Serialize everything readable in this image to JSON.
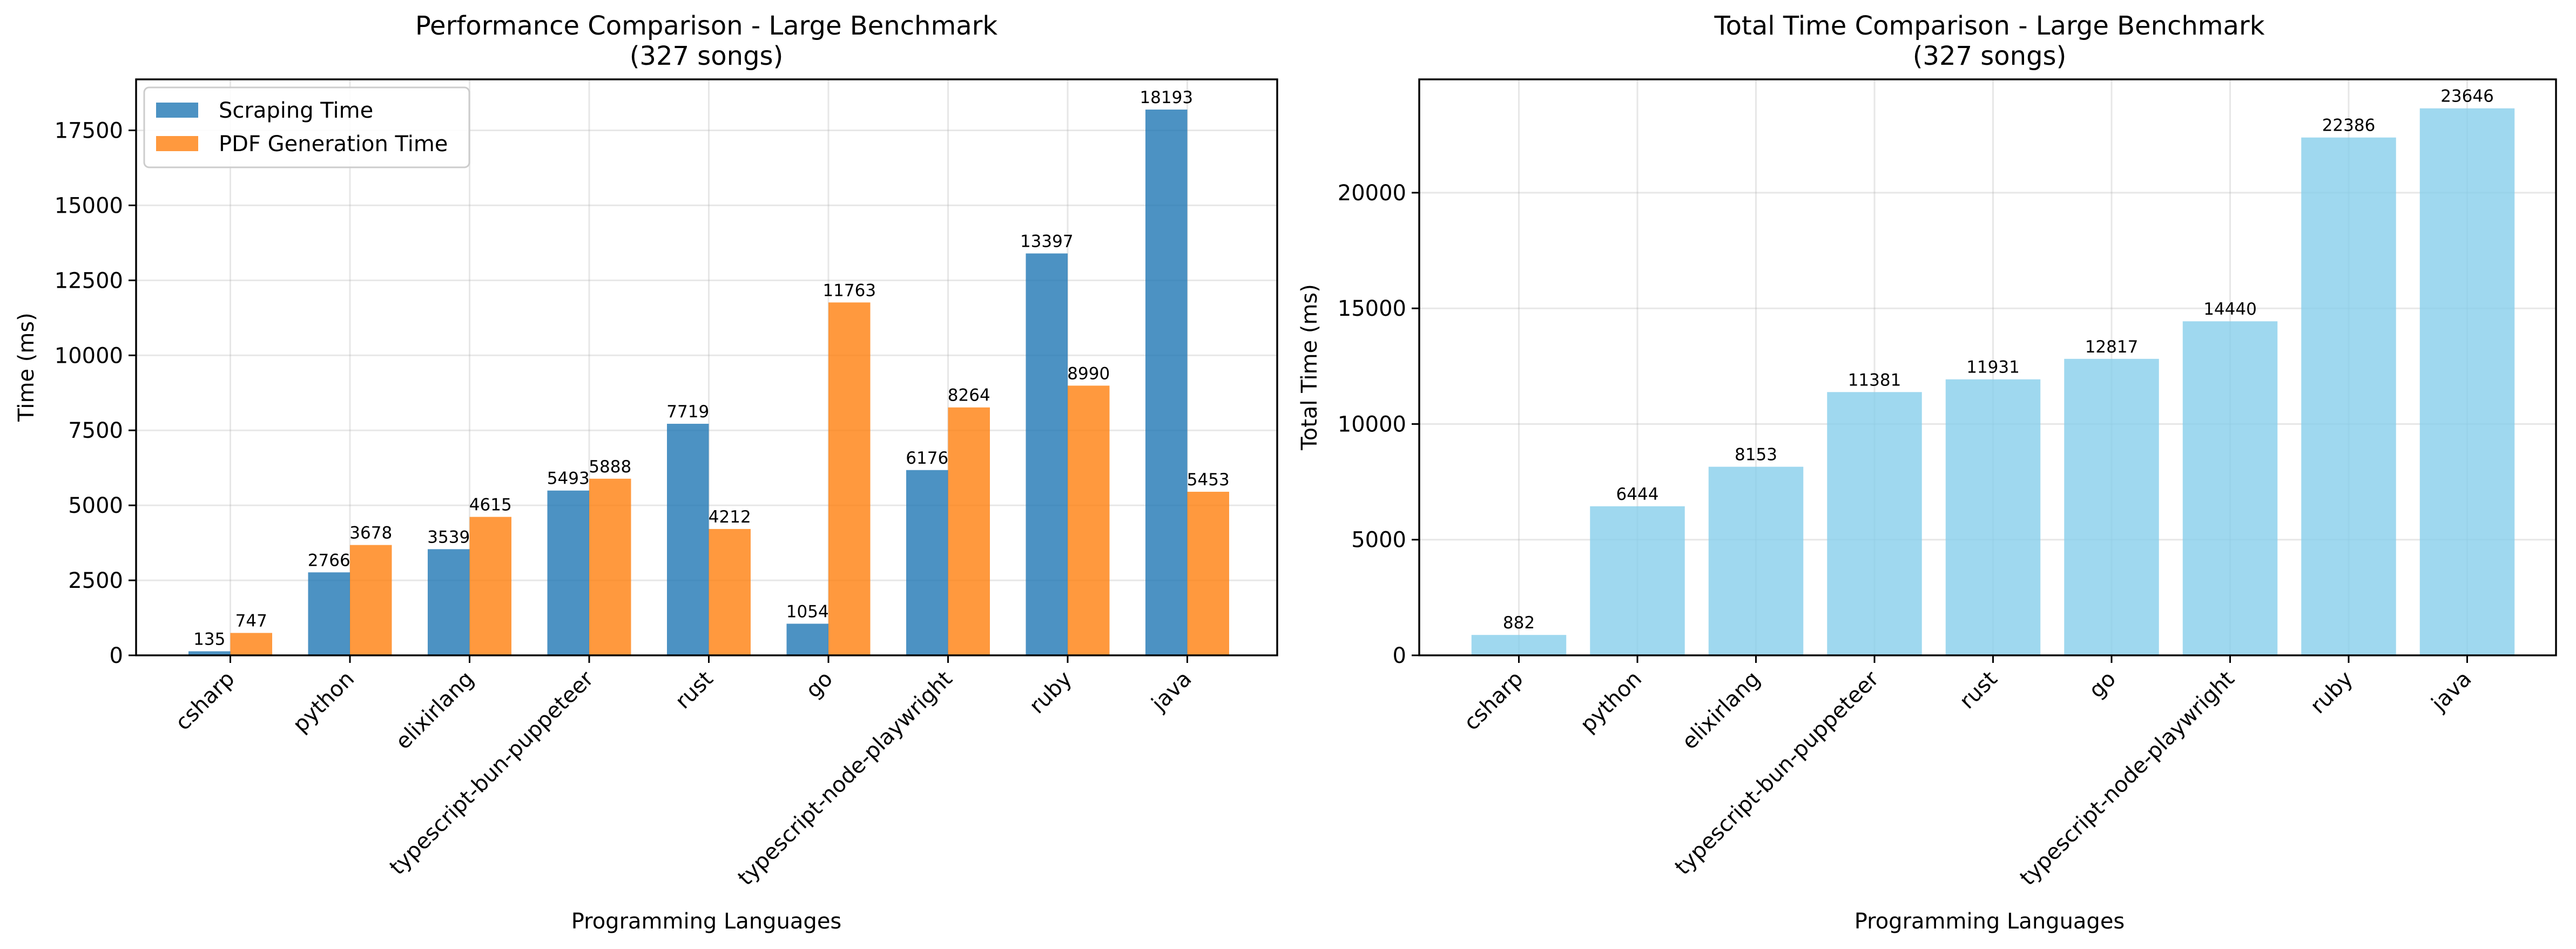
{
  "chart_data": [
    {
      "type": "bar",
      "title_line1": "Performance Comparison - Large Benchmark",
      "title_line2": "(327 songs)",
      "xlabel": "Programming Languages",
      "ylabel": "Time (ms)",
      "ylim": [
        0,
        19200
      ],
      "yticks": [
        0,
        2500,
        5000,
        7500,
        10000,
        12500,
        15000,
        17500
      ],
      "grid": true,
      "legend_position": "upper-left",
      "categories": [
        "csharp",
        "python",
        "elixirlang",
        "typescript-bun-puppeteer",
        "rust",
        "go",
        "typescript-node-playwright",
        "ruby",
        "java"
      ],
      "series": [
        {
          "name": "Scraping Time",
          "color": "#1f77b4",
          "values": [
            135,
            2766,
            3539,
            5493,
            7719,
            1054,
            6176,
            13397,
            18193
          ]
        },
        {
          "name": "PDF Generation Time",
          "color": "#ff7f0e",
          "values": [
            747,
            3678,
            4615,
            5888,
            4212,
            11763,
            8264,
            8990,
            5453
          ]
        }
      ]
    },
    {
      "type": "bar",
      "title_line1": "Total Time Comparison - Large Benchmark",
      "title_line2": "(327 songs)",
      "xlabel": "Programming Languages",
      "ylabel": "Total Time (ms)",
      "ylim": [
        0,
        24900
      ],
      "yticks": [
        0,
        5000,
        10000,
        15000,
        20000
      ],
      "grid": true,
      "categories": [
        "csharp",
        "python",
        "elixirlang",
        "typescript-bun-puppeteer",
        "rust",
        "go",
        "typescript-node-playwright",
        "ruby",
        "java"
      ],
      "series": [
        {
          "color": "#87ceeb",
          "values": [
            882,
            6444,
            8153,
            11381,
            11931,
            12817,
            14440,
            22386,
            23646
          ]
        }
      ]
    }
  ]
}
